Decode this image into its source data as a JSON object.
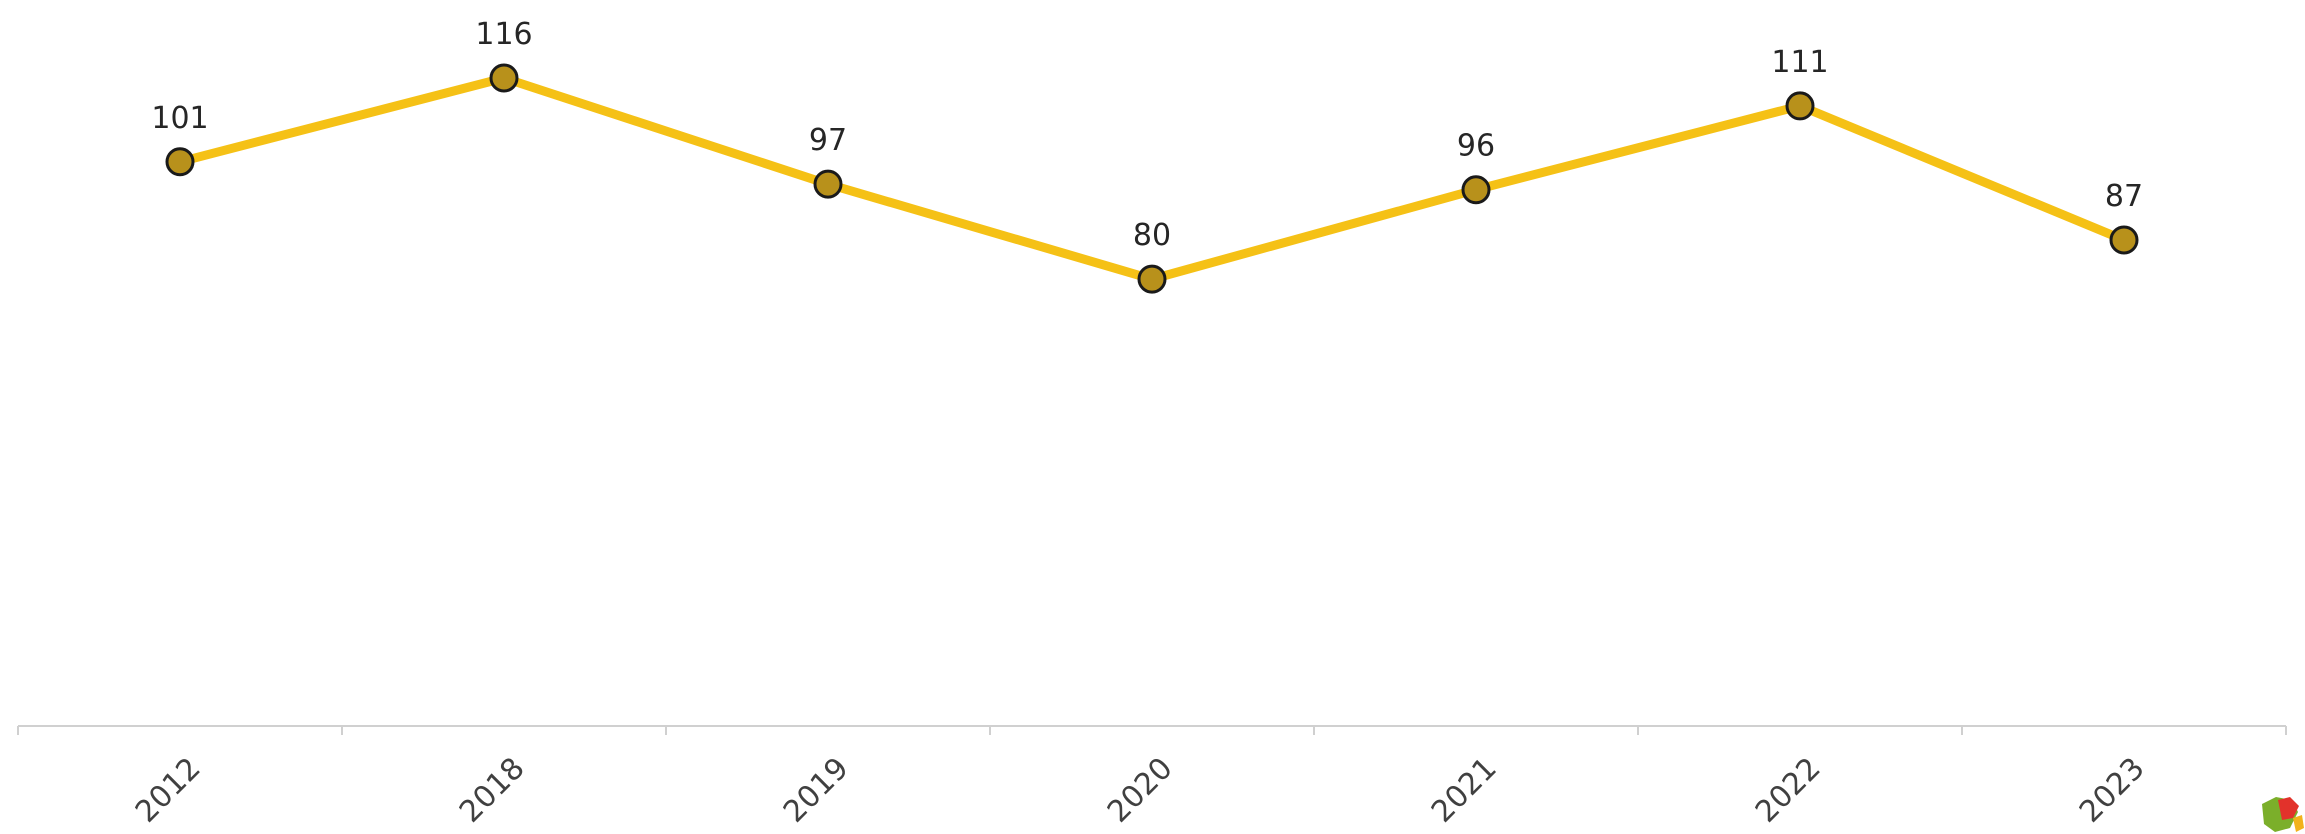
{
  "chart_data": {
    "type": "line",
    "categories": [
      "2012",
      "2018",
      "2019",
      "2020",
      "2021",
      "2022",
      "2023"
    ],
    "series": [
      {
        "values": [
          101,
          116,
          97,
          80,
          96,
          111,
          87
        ]
      }
    ],
    "data_labels": [
      "101",
      "116",
      "97",
      "80",
      "96",
      "111",
      "87"
    ],
    "ylim": [
      0,
      130
    ],
    "grid": false,
    "legend": "none",
    "colors": {
      "line": "#F5C116",
      "marker_fill": "#B8911B",
      "marker_stroke": "#1A1A1A",
      "axis": "#D0D0D0",
      "text": "#262626"
    }
  }
}
